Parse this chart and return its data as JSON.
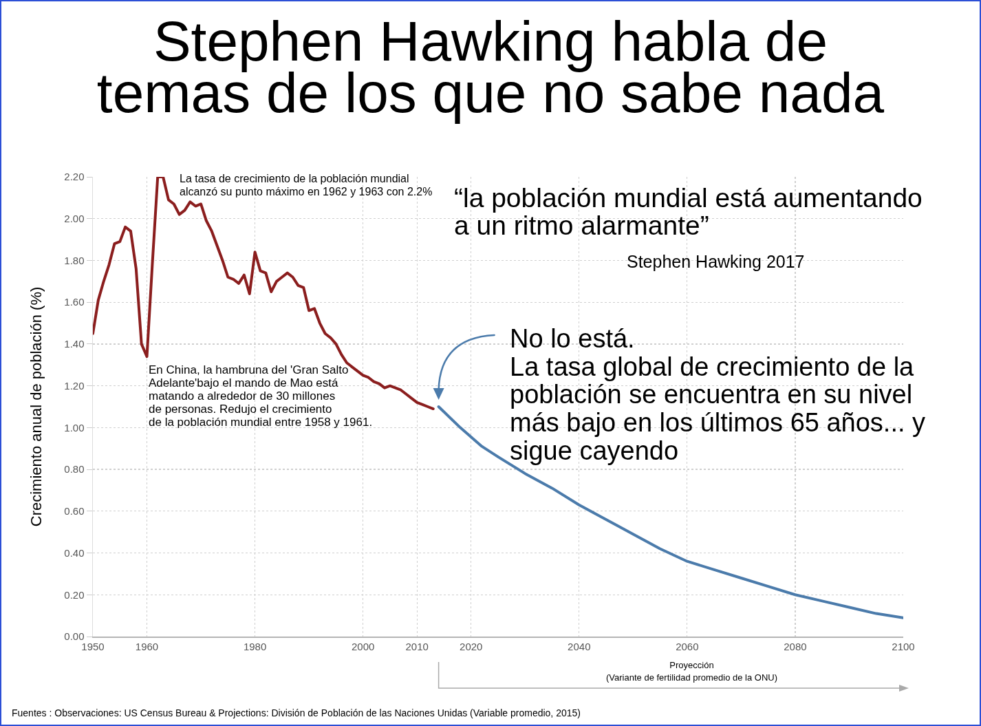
{
  "chart_data": {
    "type": "line",
    "title": "Stephen Hawking habla de\ntemas de los que no sabe nada",
    "ylabel": "Crecimiento anual de población (%)",
    "annotations": [
      {
        "text": "La tasa de crecimiento de la población mundial\nalcanzó su punto máximo en 1962 y 1963 con 2.2%",
        "x": 1963,
        "y": 2.2
      },
      {
        "text": "En China, la hambruna del 'Gran Salto\nAdelante'bajo el mando de Mao está\nmatando a alrededor de 30 millones\nde personas. Redujo el crecimiento\nde la población mundial entre 1958 y 1961.",
        "x": 1960,
        "y": 1.34
      },
      {
        "text": "No lo está.\nLa tasa global de crecimiento de la\npoblación se encuentra en su nivel\nmás bajo en los últimos 65 años... y\nsigue cayendo",
        "x": 2014,
        "y": 1.1
      },
      "“la población mundial está aumentando\na un ritmo alarmante”",
      "Stephen Hawking 2017",
      "Proyección\n(Variante de fertilidad promedio de la ONU)",
      "Fuentes : Observaciones: US Census Bureau & Projections: División de Población de las Naciones Unidas (Variable promedio, 2015)"
    ],
    "series": [
      {
        "color": "#8b1e1e",
        "x": [
          1950,
          1951,
          1952,
          1953,
          1954,
          1955,
          1956,
          1957,
          1958,
          1959,
          1960,
          1961,
          1962,
          1963,
          1964,
          1965,
          1966,
          1967,
          1968,
          1969,
          1970,
          1971,
          1972,
          1973,
          1974,
          1975,
          1976,
          1977,
          1978,
          1979,
          1980,
          1981,
          1982,
          1983,
          1984,
          1985,
          1986,
          1987,
          1988,
          1989,
          1990,
          1991,
          1992,
          1993,
          1994,
          1995,
          1996,
          1997,
          1998,
          1999,
          2000,
          2001,
          2002,
          2003,
          2004,
          2005,
          2006,
          2007,
          2008,
          2009,
          2010,
          2011,
          2012,
          2013
        ],
        "values": [
          1.45,
          1.61,
          1.7,
          1.78,
          1.88,
          1.89,
          1.96,
          1.94,
          1.76,
          1.4,
          1.34,
          1.78,
          2.2,
          2.2,
          2.09,
          2.07,
          2.02,
          2.04,
          2.08,
          2.06,
          2.07,
          1.99,
          1.94,
          1.87,
          1.8,
          1.72,
          1.71,
          1.69,
          1.73,
          1.64,
          1.84,
          1.75,
          1.74,
          1.65,
          1.7,
          1.72,
          1.74,
          1.72,
          1.68,
          1.67,
          1.56,
          1.57,
          1.5,
          1.45,
          1.43,
          1.4,
          1.35,
          1.31,
          1.29,
          1.27,
          1.25,
          1.24,
          1.22,
          1.21,
          1.19,
          1.2,
          1.19,
          1.18,
          1.16,
          1.14,
          1.12,
          1.11,
          1.1,
          1.09
        ]
      },
      {
        "color": "#4b7bab",
        "x": [
          2014,
          2018,
          2022,
          2025,
          2030,
          2035,
          2040,
          2045,
          2050,
          2055,
          2060,
          2065,
          2070,
          2075,
          2080,
          2085,
          2090,
          2095,
          2100
        ],
        "values": [
          1.1,
          1.0,
          0.91,
          0.86,
          0.78,
          0.71,
          0.63,
          0.56,
          0.49,
          0.42,
          0.36,
          0.32,
          0.28,
          0.24,
          0.2,
          0.17,
          0.14,
          0.11,
          0.09
        ]
      }
    ],
    "xlim": [
      1950,
      2100
    ],
    "xticks": [
      1950,
      1960,
      1980,
      2000,
      2010,
      2020,
      2040,
      2060,
      2080,
      2100
    ],
    "ylim": [
      0,
      2.2
    ],
    "yticks": [
      {
        "value": 0,
        "label": "0.00"
      },
      {
        "value": 0.2,
        "label": "0.20"
      },
      {
        "value": 0.4,
        "label": "0.40"
      },
      {
        "value": 0.6,
        "label": "0.60"
      },
      {
        "value": 0.8,
        "label": "0.80"
      },
      {
        "value": 1,
        "label": "1.00"
      },
      {
        "value": 1.2,
        "label": "1.20"
      },
      {
        "value": 1.4,
        "label": "1.40"
      },
      {
        "value": 1.6,
        "label": "1.60"
      },
      {
        "value": 1.8,
        "label": "1.80"
      },
      {
        "value": 2,
        "label": "2.00"
      },
      {
        "value": 2.2,
        "label": "2.20"
      }
    ],
    "grid": true
  }
}
